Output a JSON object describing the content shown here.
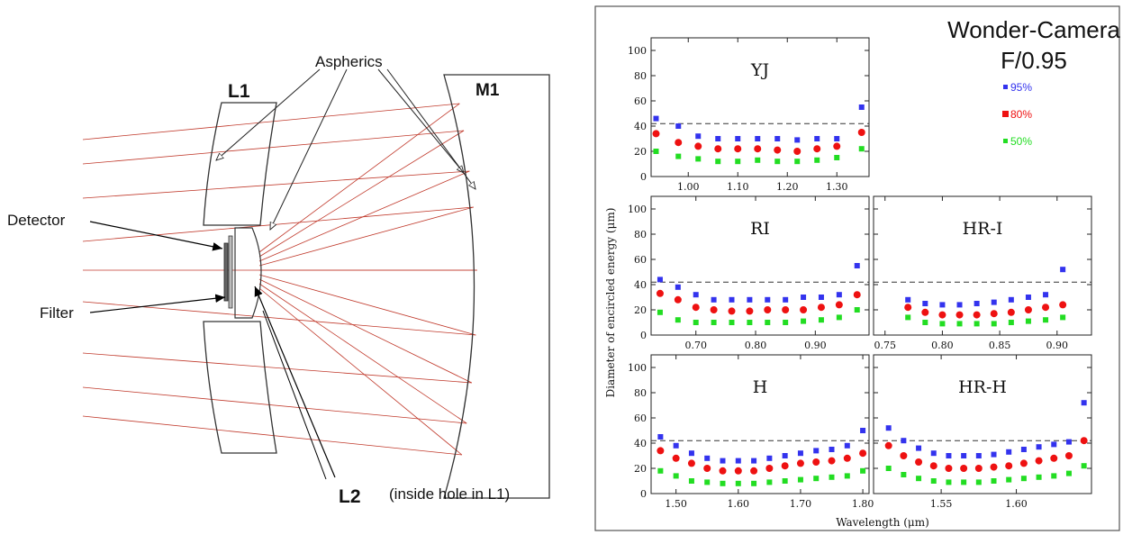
{
  "diagram": {
    "labels": {
      "l1": "L1",
      "m1": "M1",
      "l2": "L2",
      "aspherics": "Aspherics",
      "detector": "Detector",
      "filter": "Filter",
      "inside_hole": "(inside hole in L1)"
    },
    "colors": {
      "ray": "#c0392b",
      "outline": "#333333"
    }
  },
  "figure": {
    "title_line1": "Wonder-Camera",
    "title_line2": "F/0.95",
    "ylabel": "Diameter of encircled energy (μm)",
    "xlabel": "Wavelength (μm)",
    "legend": [
      {
        "label": "95%",
        "color": "#3333ee"
      },
      {
        "label": "80%",
        "color": "#ee1111"
      },
      {
        "label": "50%",
        "color": "#22dd22"
      }
    ],
    "reference_line": 42
  },
  "chart_data": [
    {
      "type": "scatter",
      "title": "YJ",
      "ylim": [
        0,
        110
      ],
      "yticks": [
        0,
        20,
        40,
        60,
        80,
        100
      ],
      "xlim": [
        0.925,
        1.365
      ],
      "xticks": [
        1.0,
        1.1,
        1.2,
        1.3
      ],
      "xtick_labels": [
        "1.00",
        "1.10",
        "1.20",
        "1.30"
      ],
      "x": [
        0.935,
        0.98,
        1.02,
        1.06,
        1.1,
        1.14,
        1.18,
        1.22,
        1.26,
        1.3,
        1.35
      ],
      "series": [
        {
          "name": "95%",
          "values": [
            46,
            40,
            32,
            30,
            30,
            30,
            30,
            29,
            30,
            30,
            55
          ]
        },
        {
          "name": "80%",
          "values": [
            34,
            27,
            24,
            22,
            22,
            22,
            21,
            20,
            22,
            24,
            35
          ]
        },
        {
          "name": "50%",
          "values": [
            20,
            16,
            14,
            12,
            12,
            13,
            12,
            12,
            13,
            15,
            22
          ]
        }
      ]
    },
    {
      "type": "scatter",
      "title": "RI",
      "ylim": [
        0,
        110
      ],
      "yticks": [
        0,
        20,
        40,
        60,
        80,
        100
      ],
      "xlim": [
        0.625,
        0.99
      ],
      "xticks": [
        0.7,
        0.8,
        0.9
      ],
      "xtick_labels": [
        "0.70",
        "0.80",
        "0.90"
      ],
      "x": [
        0.64,
        0.67,
        0.7,
        0.73,
        0.76,
        0.79,
        0.82,
        0.85,
        0.88,
        0.91,
        0.94,
        0.97
      ],
      "series": [
        {
          "name": "95%",
          "values": [
            44,
            38,
            32,
            28,
            28,
            28,
            28,
            28,
            30,
            30,
            32,
            55
          ]
        },
        {
          "name": "80%",
          "values": [
            33,
            28,
            22,
            20,
            19,
            19,
            20,
            20,
            20,
            22,
            24,
            32
          ]
        },
        {
          "name": "50%",
          "values": [
            18,
            12,
            10,
            10,
            10,
            10,
            10,
            10,
            11,
            12,
            14,
            20
          ]
        }
      ]
    },
    {
      "type": "scatter",
      "title": "HR-I",
      "ylim": [
        0,
        110
      ],
      "yticks": [
        0,
        20,
        40,
        60,
        80,
        100
      ],
      "xlim": [
        0.74,
        0.93
      ],
      "xticks": [
        0.75,
        0.8,
        0.85,
        0.9
      ],
      "xtick_labels": [
        "0.75",
        "0.80",
        "0.85",
        "0.90"
      ],
      "x": [
        0.77,
        0.785,
        0.8,
        0.815,
        0.83,
        0.845,
        0.86,
        0.875,
        0.89,
        0.905
      ],
      "series": [
        {
          "name": "95%",
          "values": [
            28,
            25,
            24,
            24,
            25,
            26,
            28,
            30,
            32,
            52
          ]
        },
        {
          "name": "80%",
          "values": [
            22,
            18,
            16,
            16,
            16,
            17,
            18,
            20,
            22,
            24
          ]
        },
        {
          "name": "50%",
          "values": [
            14,
            10,
            9,
            9,
            9,
            9,
            10,
            11,
            12,
            14
          ]
        }
      ]
    },
    {
      "type": "scatter",
      "title": "H",
      "ylim": [
        0,
        110
      ],
      "yticks": [
        0,
        20,
        40,
        60,
        80,
        100
      ],
      "xlim": [
        1.46,
        1.81
      ],
      "xticks": [
        1.5,
        1.6,
        1.7,
        1.8
      ],
      "xtick_labels": [
        "1.50",
        "1.60",
        "1.70",
        "1.80"
      ],
      "x": [
        1.475,
        1.5,
        1.525,
        1.55,
        1.575,
        1.6,
        1.625,
        1.65,
        1.675,
        1.7,
        1.725,
        1.75,
        1.775,
        1.8
      ],
      "series": [
        {
          "name": "95%",
          "values": [
            45,
            38,
            32,
            28,
            26,
            26,
            26,
            28,
            30,
            32,
            34,
            35,
            38,
            50
          ]
        },
        {
          "name": "80%",
          "values": [
            34,
            28,
            24,
            20,
            18,
            18,
            18,
            20,
            22,
            24,
            25,
            26,
            28,
            32
          ]
        },
        {
          "name": "50%",
          "values": [
            18,
            14,
            10,
            9,
            8,
            8,
            8,
            9,
            10,
            11,
            12,
            13,
            14,
            18
          ]
        }
      ]
    },
    {
      "type": "scatter",
      "title": "HR-H",
      "ylim": [
        0,
        110
      ],
      "yticks": [
        0,
        20,
        40,
        60,
        80,
        100
      ],
      "xlim": [
        1.505,
        1.65
      ],
      "xticks": [
        1.55,
        1.6
      ],
      "xtick_labels": [
        "1.55",
        "1.60"
      ],
      "x": [
        1.515,
        1.525,
        1.535,
        1.545,
        1.555,
        1.565,
        1.575,
        1.585,
        1.595,
        1.605,
        1.615,
        1.625,
        1.635,
        1.645
      ],
      "series": [
        {
          "name": "95%",
          "values": [
            52,
            42,
            36,
            32,
            30,
            30,
            30,
            31,
            33,
            35,
            37,
            39,
            41,
            72
          ]
        },
        {
          "name": "80%",
          "values": [
            38,
            30,
            25,
            22,
            20,
            20,
            20,
            21,
            22,
            24,
            26,
            28,
            30,
            42
          ]
        },
        {
          "name": "50%",
          "values": [
            20,
            15,
            12,
            10,
            9,
            9,
            9,
            10,
            11,
            12,
            13,
            14,
            16,
            22
          ]
        }
      ]
    }
  ]
}
